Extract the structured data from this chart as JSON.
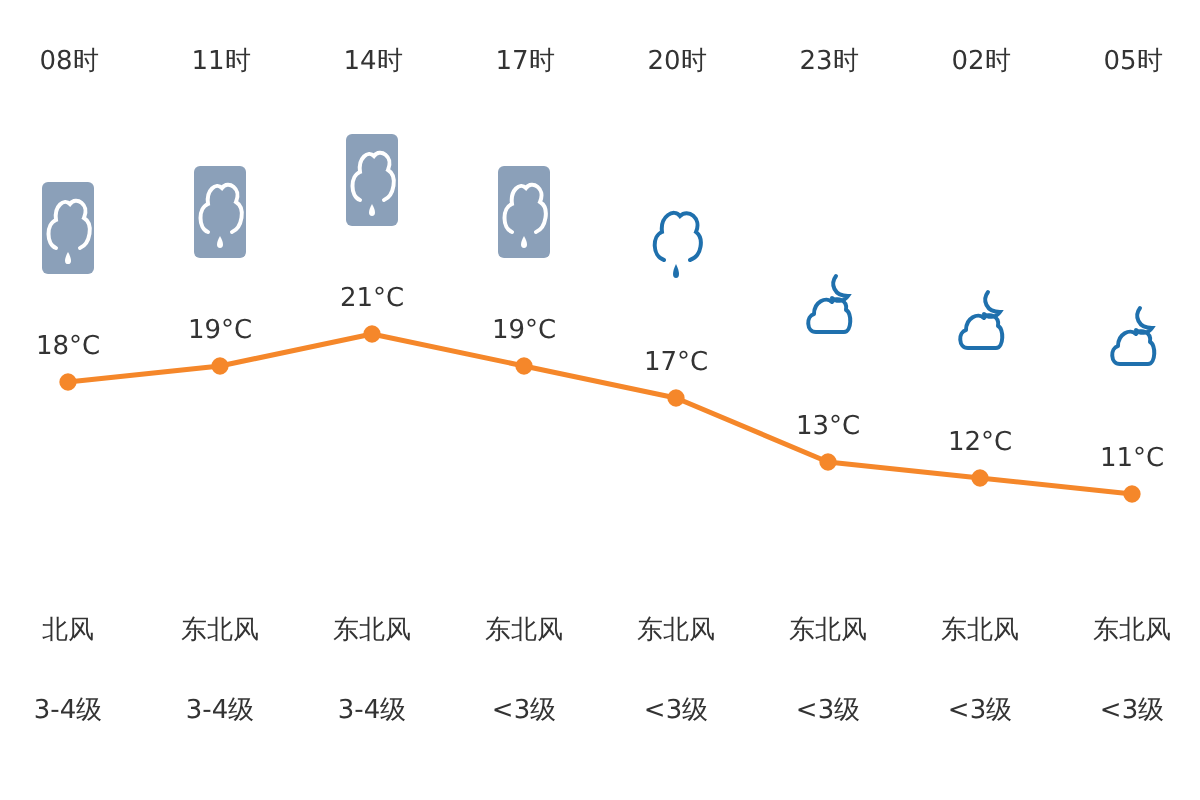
{
  "chart_data": {
    "type": "line",
    "categories": [
      "08时",
      "11时",
      "14时",
      "17时",
      "20时",
      "23时",
      "02时",
      "05时"
    ],
    "series": [
      {
        "color": "#f5872a",
        "values": [
          18,
          19,
          21,
          19,
          17,
          13,
          12,
          11
        ],
        "value_labels": [
          "18°C",
          "19°C",
          "21°C",
          "19°C",
          "17°C",
          "13°C",
          "12°C",
          "11°C"
        ]
      }
    ],
    "marker": "circle",
    "tick_labels": "x",
    "annotations": [
      "北风",
      "3-4级",
      "东北风",
      "3-4级",
      "东北风",
      "3-4级",
      "东北风",
      "<3级",
      "东北风",
      "<3级",
      "东北风",
      "<3级",
      "东北风",
      "<3级",
      "东北风",
      "<3级"
    ]
  }
}
